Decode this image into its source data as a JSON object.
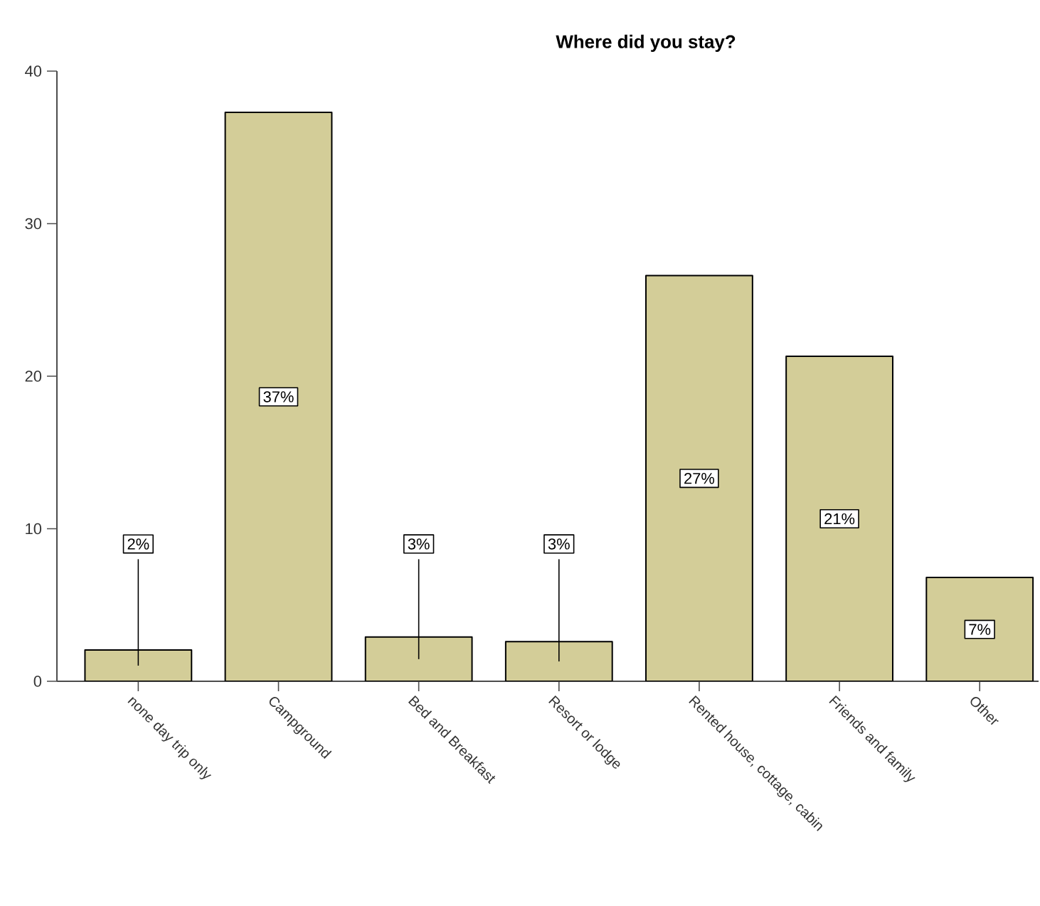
{
  "chart_data": {
    "type": "bar",
    "title": "Where did you stay?",
    "categories": [
      "none day trip only",
      "Campground",
      "Bed and Breakfast",
      "Resort or lodge",
      "Rented house, cottage, cabin",
      "Friends and family",
      "Other"
    ],
    "values": [
      2.05,
      37.3,
      2.9,
      2.6,
      26.6,
      21.3,
      6.8
    ],
    "value_labels": [
      "2%",
      "37%",
      "3%",
      "3%",
      "27%",
      "21%",
      "7%"
    ],
    "color": "#d3cd98",
    "ylim": [
      0,
      40
    ],
    "yticks": [
      0,
      10,
      20,
      30,
      40
    ],
    "grid": false
  }
}
